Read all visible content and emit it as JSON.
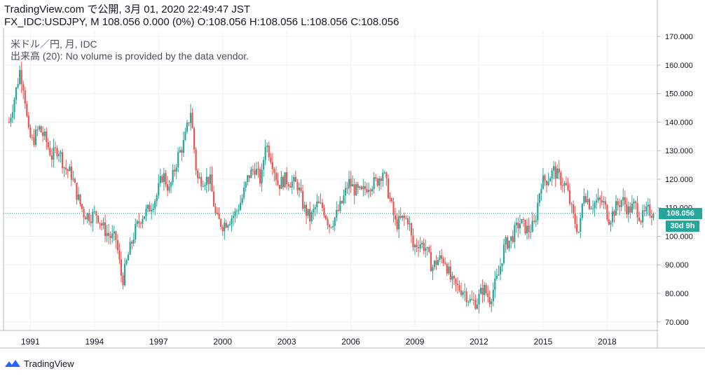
{
  "header": {
    "line1": "TradingView.com で公開, 3月 01, 2020 22:49:47 JST",
    "line2": "FX_IDC:USDJPY, M 108.056 0.000 (0%) O:108.056 H:108.056 L:108.056 C:108.056"
  },
  "legend": {
    "series": "米ドル／円, 月, IDC",
    "volume": "出来高 (20): No volume is provided by the data vendor."
  },
  "tags": {
    "price": "108.056",
    "countdown": "30d 9h"
  },
  "footer": {
    "brand": "TradingView"
  },
  "colors": {
    "up": "#26a69a",
    "down": "#ef5350",
    "grid": "#eef0f3",
    "axis": "#b2b5be",
    "last": "#26a69a",
    "brand": "#2962ff"
  },
  "chart_data": {
    "type": "candlestick",
    "xlabels": [
      "1991",
      "1994",
      "1997",
      "2000",
      "2003",
      "2006",
      "2009",
      "2012",
      "2015",
      "2018"
    ],
    "yticks": [
      "70.000",
      "80.000",
      "90.000",
      "100.000",
      "110.000",
      "120.000",
      "130.000",
      "140.000",
      "150.000",
      "160.000",
      "170.000"
    ],
    "ylim": [
      67,
      172
    ],
    "last_price": 108.056,
    "grid": true,
    "close_path_approx": [
      [
        1990.0,
        140
      ],
      [
        1990.3,
        150
      ],
      [
        1990.5,
        158
      ],
      [
        1990.7,
        152
      ],
      [
        1990.9,
        136
      ],
      [
        1991.1,
        133
      ],
      [
        1991.4,
        138
      ],
      [
        1991.7,
        134
      ],
      [
        1992.0,
        128
      ],
      [
        1992.3,
        131
      ],
      [
        1992.6,
        124
      ],
      [
        1992.9,
        122
      ],
      [
        1993.2,
        114
      ],
      [
        1993.5,
        108
      ],
      [
        1993.8,
        107
      ],
      [
        1994.1,
        108
      ],
      [
        1994.4,
        103
      ],
      [
        1994.7,
        100
      ],
      [
        1995.0,
        99
      ],
      [
        1995.3,
        84
      ],
      [
        1995.6,
        94
      ],
      [
        1995.9,
        102
      ],
      [
        1996.2,
        107
      ],
      [
        1996.5,
        109
      ],
      [
        1996.9,
        114
      ],
      [
        1997.2,
        122
      ],
      [
        1997.5,
        116
      ],
      [
        1997.9,
        128
      ],
      [
        1998.2,
        133
      ],
      [
        1998.5,
        144
      ],
      [
        1998.8,
        120
      ],
      [
        1999.1,
        120
      ],
      [
        1999.4,
        120
      ],
      [
        1999.7,
        106
      ],
      [
        2000.0,
        104
      ],
      [
        2000.3,
        106
      ],
      [
        2000.6,
        108
      ],
      [
        2000.9,
        113
      ],
      [
        2001.2,
        121
      ],
      [
        2001.5,
        124
      ],
      [
        2001.8,
        119
      ],
      [
        2002.0,
        133
      ],
      [
        2002.3,
        127
      ],
      [
        2002.6,
        118
      ],
      [
        2002.9,
        120
      ],
      [
        2003.2,
        119
      ],
      [
        2003.5,
        118
      ],
      [
        2003.8,
        110
      ],
      [
        2004.1,
        106
      ],
      [
        2004.4,
        111
      ],
      [
        2004.7,
        110
      ],
      [
        2005.0,
        104
      ],
      [
        2005.3,
        107
      ],
      [
        2005.6,
        112
      ],
      [
        2005.9,
        119
      ],
      [
        2006.2,
        116
      ],
      [
        2006.5,
        115
      ],
      [
        2006.8,
        118
      ],
      [
        2007.2,
        119
      ],
      [
        2007.5,
        123
      ],
      [
        2007.8,
        114
      ],
      [
        2008.1,
        104
      ],
      [
        2008.4,
        106
      ],
      [
        2008.7,
        106
      ],
      [
        2008.9,
        96
      ],
      [
        2009.2,
        98
      ],
      [
        2009.5,
        96
      ],
      [
        2009.8,
        89
      ],
      [
        2010.1,
        92
      ],
      [
        2010.4,
        92
      ],
      [
        2010.7,
        84
      ],
      [
        2011.0,
        82
      ],
      [
        2011.3,
        81
      ],
      [
        2011.6,
        77
      ],
      [
        2011.9,
        77
      ],
      [
        2012.2,
        82
      ],
      [
        2012.5,
        78
      ],
      [
        2012.9,
        86
      ],
      [
        2013.2,
        97
      ],
      [
        2013.5,
        99
      ],
      [
        2013.9,
        105
      ],
      [
        2014.3,
        102
      ],
      [
        2014.6,
        104
      ],
      [
        2014.9,
        119
      ],
      [
        2015.2,
        120
      ],
      [
        2015.5,
        123
      ],
      [
        2015.8,
        120
      ],
      [
        2016.1,
        117
      ],
      [
        2016.4,
        107
      ],
      [
        2016.7,
        101
      ],
      [
        2016.9,
        116
      ],
      [
        2017.2,
        111
      ],
      [
        2017.5,
        112
      ],
      [
        2017.8,
        112
      ],
      [
        2018.1,
        106
      ],
      [
        2018.4,
        110
      ],
      [
        2018.7,
        113
      ],
      [
        2019.0,
        109
      ],
      [
        2019.3,
        111
      ],
      [
        2019.6,
        106
      ],
      [
        2019.9,
        109
      ],
      [
        2020.2,
        108.056
      ]
    ]
  }
}
